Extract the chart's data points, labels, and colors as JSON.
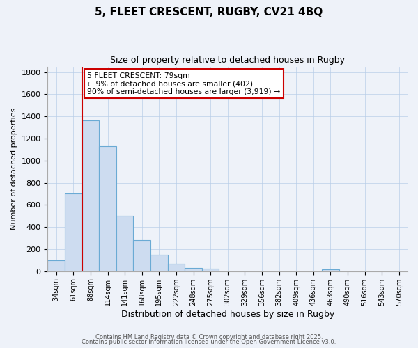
{
  "title1": "5, FLEET CRESCENT, RUGBY, CV21 4BQ",
  "title2": "Size of property relative to detached houses in Rugby",
  "xlabel": "Distribution of detached houses by size in Rugby",
  "ylabel": "Number of detached properties",
  "bin_labels": [
    "34sqm",
    "61sqm",
    "88sqm",
    "114sqm",
    "141sqm",
    "168sqm",
    "195sqm",
    "222sqm",
    "248sqm",
    "275sqm",
    "302sqm",
    "329sqm",
    "356sqm",
    "382sqm",
    "409sqm",
    "436sqm",
    "463sqm",
    "490sqm",
    "516sqm",
    "543sqm",
    "570sqm"
  ],
  "bar_heights": [
    100,
    700,
    1360,
    1130,
    500,
    280,
    150,
    70,
    30,
    25,
    0,
    0,
    0,
    0,
    0,
    0,
    15,
    0,
    0,
    0,
    0
  ],
  "bar_color": "#cddcf0",
  "bar_edge_color": "#6aaad4",
  "vline_x": 2,
  "vline_color": "#cc0000",
  "annotation_title": "5 FLEET CRESCENT: 79sqm",
  "annotation_line1": "← 9% of detached houses are smaller (402)",
  "annotation_line2": "90% of semi-detached houses are larger (3,919) →",
  "annotation_box_edge": "#cc0000",
  "ylim": [
    0,
    1850
  ],
  "yticks": [
    0,
    200,
    400,
    600,
    800,
    1000,
    1200,
    1400,
    1600,
    1800
  ],
  "footer1": "Contains HM Land Registry data © Crown copyright and database right 2025.",
  "footer2": "Contains public sector information licensed under the Open Government Licence v3.0.",
  "bg_color": "#eef2f9",
  "plot_bg_color": "#eef2f9"
}
